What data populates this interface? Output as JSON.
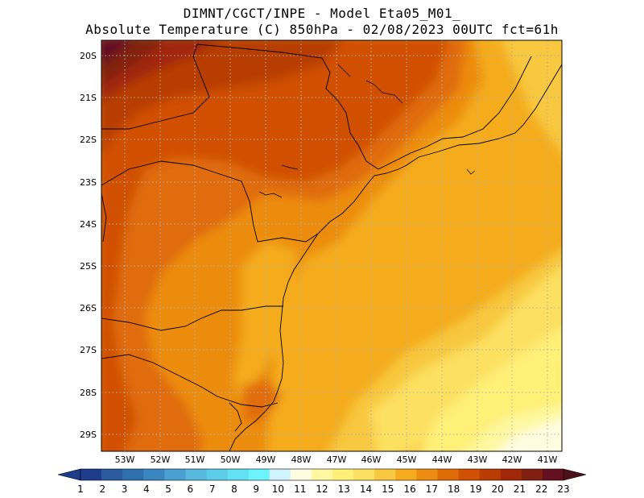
{
  "title": {
    "line1": "DIMNT/CGCT/INPE -  Model Eta05_M01_",
    "line2": "Absolute Temperature (C) 850hPa -  02/08/2023 00UTC fct=61h"
  },
  "axes": {
    "lat_labels": [
      "20S",
      "21S",
      "22S",
      "23S",
      "24S",
      "25S",
      "26S",
      "27S",
      "28S",
      "29S"
    ],
    "lon_labels": [
      "53W",
      "52W",
      "51W",
      "50W",
      "49W",
      "48W",
      "47W",
      "46W",
      "45W",
      "44W",
      "43W",
      "42W",
      "41W"
    ]
  },
  "colorbar": {
    "labels": [
      "1",
      "2",
      "3",
      "4",
      "5",
      "6",
      "7",
      "8",
      "9",
      "10",
      "11",
      "12",
      "13",
      "14",
      "15",
      "16",
      "17",
      "18",
      "19",
      "20",
      "21",
      "22",
      "23"
    ],
    "colors": [
      "#1e3c8c",
      "#2a5aa0",
      "#3070b0",
      "#3a86c0",
      "#4aa0d0",
      "#55b8dc",
      "#5ccce8",
      "#62e0f4",
      "#6cf4fc",
      "#d0f4ff",
      "#fffce0",
      "#fff8a0",
      "#fff078",
      "#fce060",
      "#f8c840",
      "#f4ac1c",
      "#ec8c10",
      "#e06c08",
      "#d05004",
      "#b83c04",
      "#a02808",
      "#802010",
      "#641020"
    ],
    "end_low": "#1e3c8c",
    "end_high": "#4c1018"
  },
  "field_colors": {
    "t23": "#641020",
    "t22": "#802010",
    "t21": "#a02808",
    "t20": "#b83c04",
    "t19": "#d05004",
    "t18": "#e06c08",
    "t17": "#ec8c10",
    "t16": "#f4ac1c",
    "t15": "#f8c840",
    "t14": "#fce060",
    "t13": "#fff078",
    "t12": "#fff8a0",
    "t11": "#fffce0"
  }
}
